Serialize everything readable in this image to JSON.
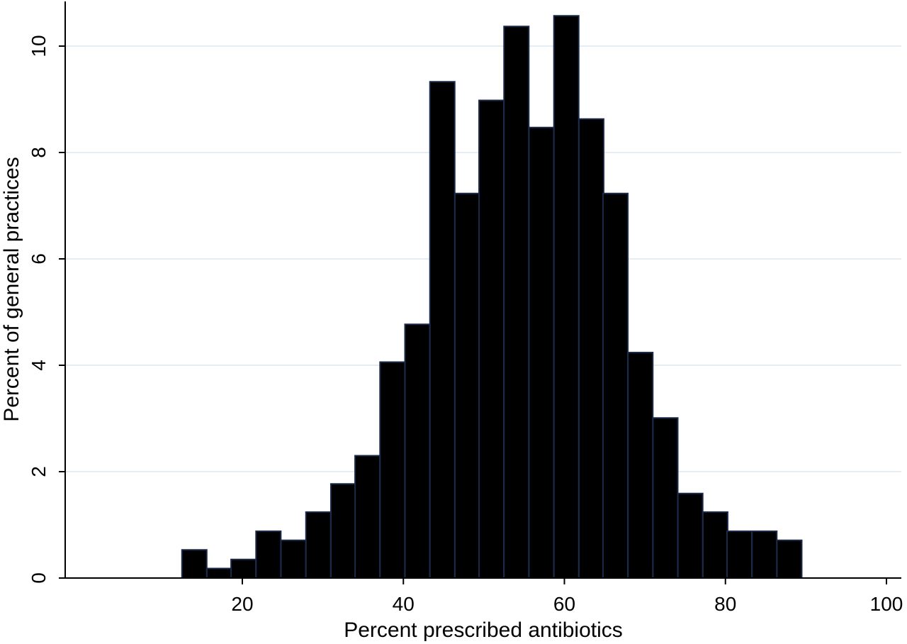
{
  "chart_data": {
    "type": "bar",
    "subtype": "histogram",
    "title": "",
    "xlabel": "Percent prescribed antibiotics",
    "ylabel": "Percent of general practices",
    "xlim": [
      0,
      102
    ],
    "ylim": [
      0,
      10.8
    ],
    "xticks": [
      20,
      40,
      60,
      80,
      100
    ],
    "yticks": [
      0,
      2,
      4,
      6,
      8,
      10
    ],
    "grid": true,
    "bin_width": 3.08,
    "bins": [
      {
        "start": 12.5,
        "value": 0.53
      },
      {
        "start": 15.6,
        "value": 0.18
      },
      {
        "start": 18.6,
        "value": 0.35
      },
      {
        "start": 21.7,
        "value": 0.88
      },
      {
        "start": 24.8,
        "value": 0.71
      },
      {
        "start": 27.9,
        "value": 1.24
      },
      {
        "start": 31.0,
        "value": 1.77
      },
      {
        "start": 34.0,
        "value": 2.3
      },
      {
        "start": 37.1,
        "value": 4.06
      },
      {
        "start": 40.2,
        "value": 4.77
      },
      {
        "start": 43.3,
        "value": 9.33
      },
      {
        "start": 46.4,
        "value": 7.23
      },
      {
        "start": 49.4,
        "value": 8.98
      },
      {
        "start": 52.5,
        "value": 10.37
      },
      {
        "start": 55.6,
        "value": 8.47
      },
      {
        "start": 58.7,
        "value": 10.57
      },
      {
        "start": 61.8,
        "value": 8.63
      },
      {
        "start": 64.8,
        "value": 7.23
      },
      {
        "start": 67.9,
        "value": 4.24
      },
      {
        "start": 71.0,
        "value": 3.01
      },
      {
        "start": 74.1,
        "value": 1.59
      },
      {
        "start": 77.2,
        "value": 1.24
      },
      {
        "start": 80.2,
        "value": 0.88
      },
      {
        "start": 83.3,
        "value": 0.88
      },
      {
        "start": 86.4,
        "value": 0.71
      }
    ],
    "colors": {
      "bar_fill": "#000000",
      "bar_edge": "#1c2a4a",
      "grid": "#e3edf3",
      "axis": "#000000"
    }
  }
}
